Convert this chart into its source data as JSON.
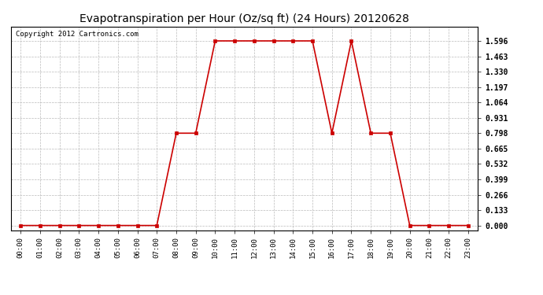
{
  "title": "Evapotranspiration per Hour (Oz/sq ft) (24 Hours) 20120628",
  "copyright": "Copyright 2012 Cartronics.com",
  "hours": [
    "00:00",
    "01:00",
    "02:00",
    "03:00",
    "04:00",
    "05:00",
    "06:00",
    "07:00",
    "08:00",
    "09:00",
    "10:00",
    "11:00",
    "12:00",
    "13:00",
    "14:00",
    "15:00",
    "16:00",
    "17:00",
    "18:00",
    "19:00",
    "20:00",
    "21:00",
    "22:00",
    "23:00"
  ],
  "values": [
    0.0,
    0.0,
    0.0,
    0.0,
    0.0,
    0.0,
    0.0,
    0.0,
    0.798,
    0.798,
    1.596,
    1.596,
    1.596,
    1.596,
    1.596,
    1.596,
    0.798,
    1.596,
    0.798,
    0.798,
    0.0,
    0.0,
    0.0,
    0.0
  ],
  "y_ticks": [
    0.0,
    0.133,
    0.266,
    0.399,
    0.532,
    0.665,
    0.798,
    0.931,
    1.064,
    1.197,
    1.33,
    1.463,
    1.596
  ],
  "ylim": [
    -0.04,
    1.72
  ],
  "line_color": "#cc0000",
  "marker": "s",
  "marker_size": 3,
  "bg_color": "#ffffff",
  "plot_bg_color": "#ffffff",
  "grid_color": "#bbbbbb",
  "title_fontsize": 10,
  "copyright_fontsize": 6.5,
  "tick_fontsize": 6.5,
  "ytick_fontsize": 7
}
